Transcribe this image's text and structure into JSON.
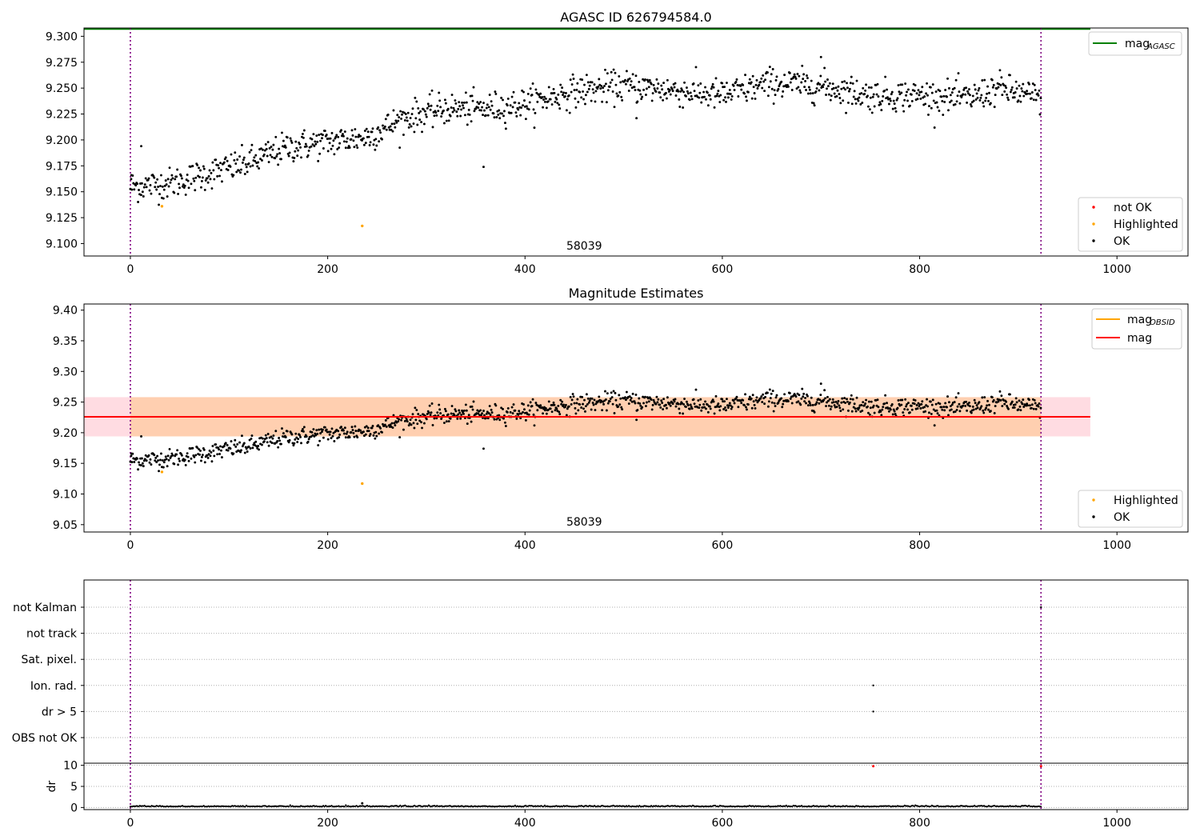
{
  "chart_data": [
    {
      "type": "scatter",
      "title": "AGASC ID 626794584.0",
      "annotation": "58039",
      "xlim": [
        -47,
        1072
      ],
      "ylim": [
        9.088,
        9.308
      ],
      "xticks": [
        0,
        200,
        400,
        600,
        800,
        1000
      ],
      "yticks": [
        9.1,
        9.125,
        9.15,
        9.175,
        9.2,
        9.225,
        9.25,
        9.275,
        9.3
      ],
      "vlines": [
        0,
        923
      ],
      "hlines": [
        {
          "name": "mag",
          "subscript": "AGASC",
          "y": 9.307,
          "xmax": 973,
          "color": "#008000"
        }
      ],
      "legend_lines": [
        {
          "name": "mag",
          "subscript": "AGASC",
          "color": "#008000"
        }
      ],
      "legend_points": [
        {
          "name": "not OK",
          "color": "#ff0000"
        },
        {
          "name": "Highlighted",
          "color": "#ffa500"
        },
        {
          "name": "OK",
          "color": "#000000"
        }
      ],
      "series": [
        {
          "name": "OK",
          "color": "#000000",
          "trend": [
            [
              0,
              9.155
            ],
            [
              40,
              9.158
            ],
            [
              80,
              9.168
            ],
            [
              120,
              9.178
            ],
            [
              160,
              9.193
            ],
            [
              200,
              9.198
            ],
            [
              240,
              9.203
            ],
            [
              280,
              9.222
            ],
            [
              320,
              9.23
            ],
            [
              360,
              9.23
            ],
            [
              400,
              9.235
            ],
            [
              450,
              9.247
            ],
            [
              500,
              9.252
            ],
            [
              550,
              9.248
            ],
            [
              600,
              9.243
            ],
            [
              650,
              9.255
            ],
            [
              700,
              9.252
            ],
            [
              750,
              9.243
            ],
            [
              800,
              9.243
            ],
            [
              850,
              9.24
            ],
            [
              880,
              9.25
            ],
            [
              923,
              9.24
            ]
          ],
          "scatter": 0.0075,
          "outliers": [
            [
              11,
              9.194
            ],
            [
              358,
              9.174
            ],
            [
              700,
              9.28
            ],
            [
              513,
              9.221
            ],
            [
              1,
              9.166
            ]
          ]
        },
        {
          "name": "Highlighted",
          "color": "#ffa500",
          "points": [
            [
              32,
              9.136
            ],
            [
              235,
              9.117
            ]
          ]
        }
      ]
    },
    {
      "type": "scatter",
      "title": "Magnitude Estimates",
      "annotation": "58039",
      "xlim": [
        -47,
        1072
      ],
      "ylim": [
        9.038,
        9.41
      ],
      "xticks": [
        0,
        200,
        400,
        600,
        800,
        1000
      ],
      "yticks": [
        9.05,
        9.1,
        9.15,
        9.2,
        9.25,
        9.3,
        9.35,
        9.4
      ],
      "vlines": [
        0,
        923
      ],
      "bands": [
        {
          "y0": 9.194,
          "y1": 9.258,
          "xmax": 973,
          "color": "#ffc0cb",
          "opacity": 0.55
        },
        {
          "y0": 9.194,
          "y1": 9.258,
          "xmin": 0,
          "xmax": 923,
          "color": "#ffa500",
          "opacity": 0.22
        }
      ],
      "hlines": [
        {
          "name": "mag",
          "y": 9.226,
          "xmax": 973,
          "color": "#ff0000"
        }
      ],
      "legend_lines": [
        {
          "name": "mag",
          "subscript": "OBSID",
          "color": "#ffa500"
        },
        {
          "name": "mag",
          "color": "#ff0000"
        }
      ],
      "legend_points": [
        {
          "name": "Highlighted",
          "color": "#ffa500"
        },
        {
          "name": "OK",
          "color": "#000000"
        }
      ]
    },
    {
      "type": "scatter",
      "xlim": [
        -47,
        1072
      ],
      "xticks": [
        0,
        200,
        400,
        600,
        800,
        1000
      ],
      "categories": [
        "not Kalman",
        "not track",
        "Sat. pixel.",
        "Ion. rad.",
        "dr > 5",
        "OBS not OK"
      ],
      "vlines": [
        0,
        923
      ],
      "points": [
        {
          "x": 753,
          "category": "Ion. rad."
        },
        {
          "x": 753,
          "category": "dr > 5"
        },
        {
          "x": 923,
          "category": "not Kalman"
        }
      ]
    },
    {
      "type": "scatter",
      "ylabel": "dr",
      "xlim": [
        -47,
        1072
      ],
      "ylim": [
        -0.5,
        10.5
      ],
      "xticks": [
        0,
        200,
        400,
        600,
        800,
        1000
      ],
      "yticks": [
        0,
        5,
        10
      ],
      "vlines": [
        0,
        923
      ],
      "baseline": {
        "y": 0.2,
        "x0": 0,
        "x1": 923
      },
      "points": [
        {
          "x": 235,
          "y": 1.0,
          "color": "#000000"
        },
        {
          "x": 753,
          "y": 9.8,
          "color": "#ff0000"
        },
        {
          "x": 923,
          "y": 9.8,
          "color": "#ff0000"
        }
      ]
    }
  ]
}
